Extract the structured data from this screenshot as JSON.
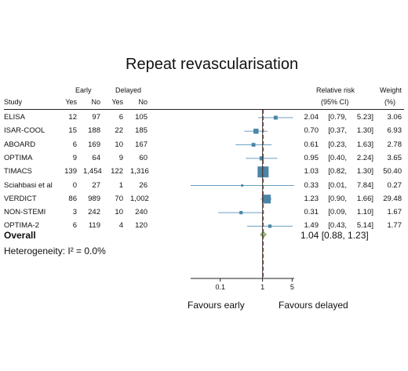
{
  "chart_data": {
    "type": "forest",
    "title": "Repeat revascularisation",
    "headers": {
      "study": "Study",
      "early_group": "Early",
      "delayed_group": "Delayed",
      "yes": "Yes",
      "no": "No",
      "rr_line1": "Relative risk",
      "rr_line2": "(95% CI)",
      "weight_line1": "Weight",
      "weight_line2": "(%)"
    },
    "x_axis": {
      "scale": "log",
      "range": [
        0.02,
        5.6
      ],
      "ticks": [
        0.1,
        1,
        5
      ],
      "tick_labels": [
        "0.1",
        "1",
        "5"
      ],
      "null_line": 1,
      "pooled_line": 1.04
    },
    "studies": [
      {
        "name": "ELISA",
        "early_yes": "12",
        "early_no": "97",
        "delayed_yes": "6",
        "delayed_no": "105",
        "rr": 2.04,
        "lo": 0.79,
        "hi": 5.23,
        "rr_txt": "2.04",
        "lo_txt": "[0.79,",
        "hi_txt": "5.23]",
        "weight": 3.06,
        "weight_txt": "3.06"
      },
      {
        "name": "ISAR-COOL",
        "early_yes": "15",
        "early_no": "188",
        "delayed_yes": "22",
        "delayed_no": "185",
        "rr": 0.7,
        "lo": 0.37,
        "hi": 1.3,
        "rr_txt": "0.70",
        "lo_txt": "[0.37,",
        "hi_txt": "1.30]",
        "weight": 6.93,
        "weight_txt": "6.93"
      },
      {
        "name": "ABOARD",
        "early_yes": "6",
        "early_no": "169",
        "delayed_yes": "10",
        "delayed_no": "167",
        "rr": 0.61,
        "lo": 0.23,
        "hi": 1.63,
        "rr_txt": "0.61",
        "lo_txt": "[0.23,",
        "hi_txt": "1.63]",
        "weight": 2.78,
        "weight_txt": "2.78"
      },
      {
        "name": "OPTIMA",
        "early_yes": "9",
        "early_no": "64",
        "delayed_yes": "9",
        "delayed_no": "60",
        "rr": 0.95,
        "lo": 0.4,
        "hi": 2.24,
        "rr_txt": "0.95",
        "lo_txt": "[0.40,",
        "hi_txt": "2.24]",
        "weight": 3.65,
        "weight_txt": "3.65"
      },
      {
        "name": "TIMACS",
        "early_yes": "139",
        "early_no": "1,454",
        "delayed_yes": "122",
        "delayed_no": "1,316",
        "rr": 1.03,
        "lo": 0.82,
        "hi": 1.3,
        "rr_txt": "1.03",
        "lo_txt": "[0.82,",
        "hi_txt": "1.30]",
        "weight": 50.4,
        "weight_txt": "50.40"
      },
      {
        "name": "Sciahbasi et al",
        "early_yes": "0",
        "early_no": "27",
        "delayed_yes": "1",
        "delayed_no": "26",
        "rr": 0.33,
        "lo": 0.01,
        "hi": 7.84,
        "rr_txt": "0.33",
        "lo_txt": "[0.01,",
        "hi_txt": "7.84]",
        "weight": 0.27,
        "weight_txt": "0.27"
      },
      {
        "name": "VERDICT",
        "early_yes": "86",
        "early_no": "989",
        "delayed_yes": "70",
        "delayed_no": "1,002",
        "rr": 1.23,
        "lo": 0.9,
        "hi": 1.66,
        "rr_txt": "1.23",
        "lo_txt": "[0.90,",
        "hi_txt": "1.66]",
        "weight": 29.48,
        "weight_txt": "29.48"
      },
      {
        "name": "NON-STEMI",
        "early_yes": "3",
        "early_no": "242",
        "delayed_yes": "10",
        "delayed_no": "240",
        "rr": 0.31,
        "lo": 0.09,
        "hi": 1.1,
        "rr_txt": "0.31",
        "lo_txt": "[0.09,",
        "hi_txt": "1.10]",
        "weight": 1.67,
        "weight_txt": "1.67"
      },
      {
        "name": "OPTIMA-2",
        "early_yes": "6",
        "early_no": "119",
        "delayed_yes": "4",
        "delayed_no": "120",
        "rr": 1.49,
        "lo": 0.43,
        "hi": 5.14,
        "rr_txt": "1.49",
        "lo_txt": "[0.43,",
        "hi_txt": "5.14]",
        "weight": 1.77,
        "weight_txt": "1.77"
      }
    ],
    "overall": {
      "label": "Overall",
      "rr": 1.04,
      "lo": 0.88,
      "hi": 1.23,
      "text": "1.04 [0.88, 1.23]"
    },
    "heterogeneity": "Heterogeneity: I² = 0.0%",
    "favours_left": "Favours early",
    "favours_right": "Favours delayed",
    "colors": {
      "box": "#4a86a8",
      "ci": "#6aa0c0",
      "diamond": "#9fbf7f",
      "null_line": "#333333",
      "pooled_line": "#c0392b"
    }
  }
}
